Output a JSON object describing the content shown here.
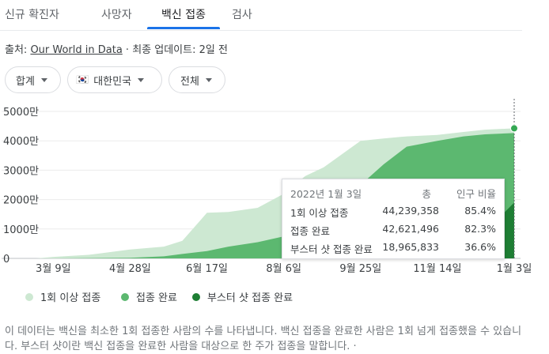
{
  "tabs": [
    "신규 확진자",
    "사망자",
    "백신 접종",
    "검사"
  ],
  "source": {
    "prefix": "출처: ",
    "link": "Our World in Data",
    "suffix": " · 최종 업데이트: 2일 전"
  },
  "filters": {
    "metric": "합계",
    "country": "대한민국",
    "country_flag": "🇰🇷",
    "range": "전체"
  },
  "colors": {
    "at_least_one": "#cde8d2",
    "fully": "#5cb870",
    "booster": "#1e7e34",
    "accent": "#1a73e8"
  },
  "chart_data": {
    "type": "area",
    "x": [
      "2021-02-26",
      "2021-03-09",
      "2021-04-01",
      "2021-04-28",
      "2021-05-20",
      "2021-06-01",
      "2021-06-17",
      "2021-07-01",
      "2021-07-20",
      "2021-08-06",
      "2021-08-20",
      "2021-09-01",
      "2021-09-25",
      "2021-10-10",
      "2021-10-25",
      "2021-11-14",
      "2021-12-01",
      "2021-12-15",
      "2022-01-03"
    ],
    "series": [
      {
        "name": "1회 이상 접종",
        "values": [
          0,
          0.05,
          0.12,
          0.3,
          0.4,
          0.6,
          1.55,
          1.58,
          1.72,
          2.2,
          2.8,
          3.1,
          4.0,
          4.08,
          4.15,
          4.2,
          4.3,
          4.38,
          4.4239358
        ]
      },
      {
        "name": "접종 완료",
        "values": [
          0,
          0.0,
          0.01,
          0.02,
          0.07,
          0.15,
          0.25,
          0.4,
          0.55,
          0.75,
          1.1,
          1.7,
          2.5,
          3.2,
          3.8,
          4.0,
          4.15,
          4.22,
          4.2621496
        ]
      },
      {
        "name": "부스터 샷 접종 완료",
        "values": [
          0,
          0,
          0,
          0,
          0,
          0,
          0,
          0,
          0,
          0,
          0,
          0,
          0,
          0.01,
          0.03,
          0.1,
          0.35,
          0.9,
          1.8965833
        ]
      }
    ],
    "x_ticks": [
      "3월 9일",
      "4월 28일",
      "6월 17일",
      "8월 6일",
      "9월 25일",
      "11월 14일",
      "1월 3일"
    ],
    "y_ticks": [
      "0",
      "1000만",
      "2000만",
      "3000만",
      "4000만",
      "5000만"
    ],
    "y_unit_values": [
      0,
      1,
      2,
      3,
      4,
      5
    ],
    "ylim": [
      0,
      5
    ],
    "grid": true,
    "legend_position": "bottom-left"
  },
  "tooltip": {
    "date": "2022년 1월 3일",
    "col_total": "총",
    "col_ratio": "인구 비율",
    "rows": [
      {
        "label": "1회 이상 접종",
        "total": "44,239,358",
        "ratio": "85.4%"
      },
      {
        "label": "접종 완료",
        "total": "42,621,496",
        "ratio": "82.3%"
      },
      {
        "label": "부스터 샷 접종 완료",
        "total": "18,965,833",
        "ratio": "36.6%"
      }
    ]
  },
  "legend": [
    "1회 이상 접종",
    "접종 완료",
    "부스터 샷 접종 완료"
  ],
  "description": "이 데이터는 백신을 최소한 1회 접종한 사람의 수를 나타냅니다. 백신 접종을 완료한 사람은 1회 넘게 접종했을 수 있습니다. 부스터 샷이란 백신 접종을 완료한 사람을 대상으로 한 주가 접종을 말합니다.",
  "more": "·"
}
